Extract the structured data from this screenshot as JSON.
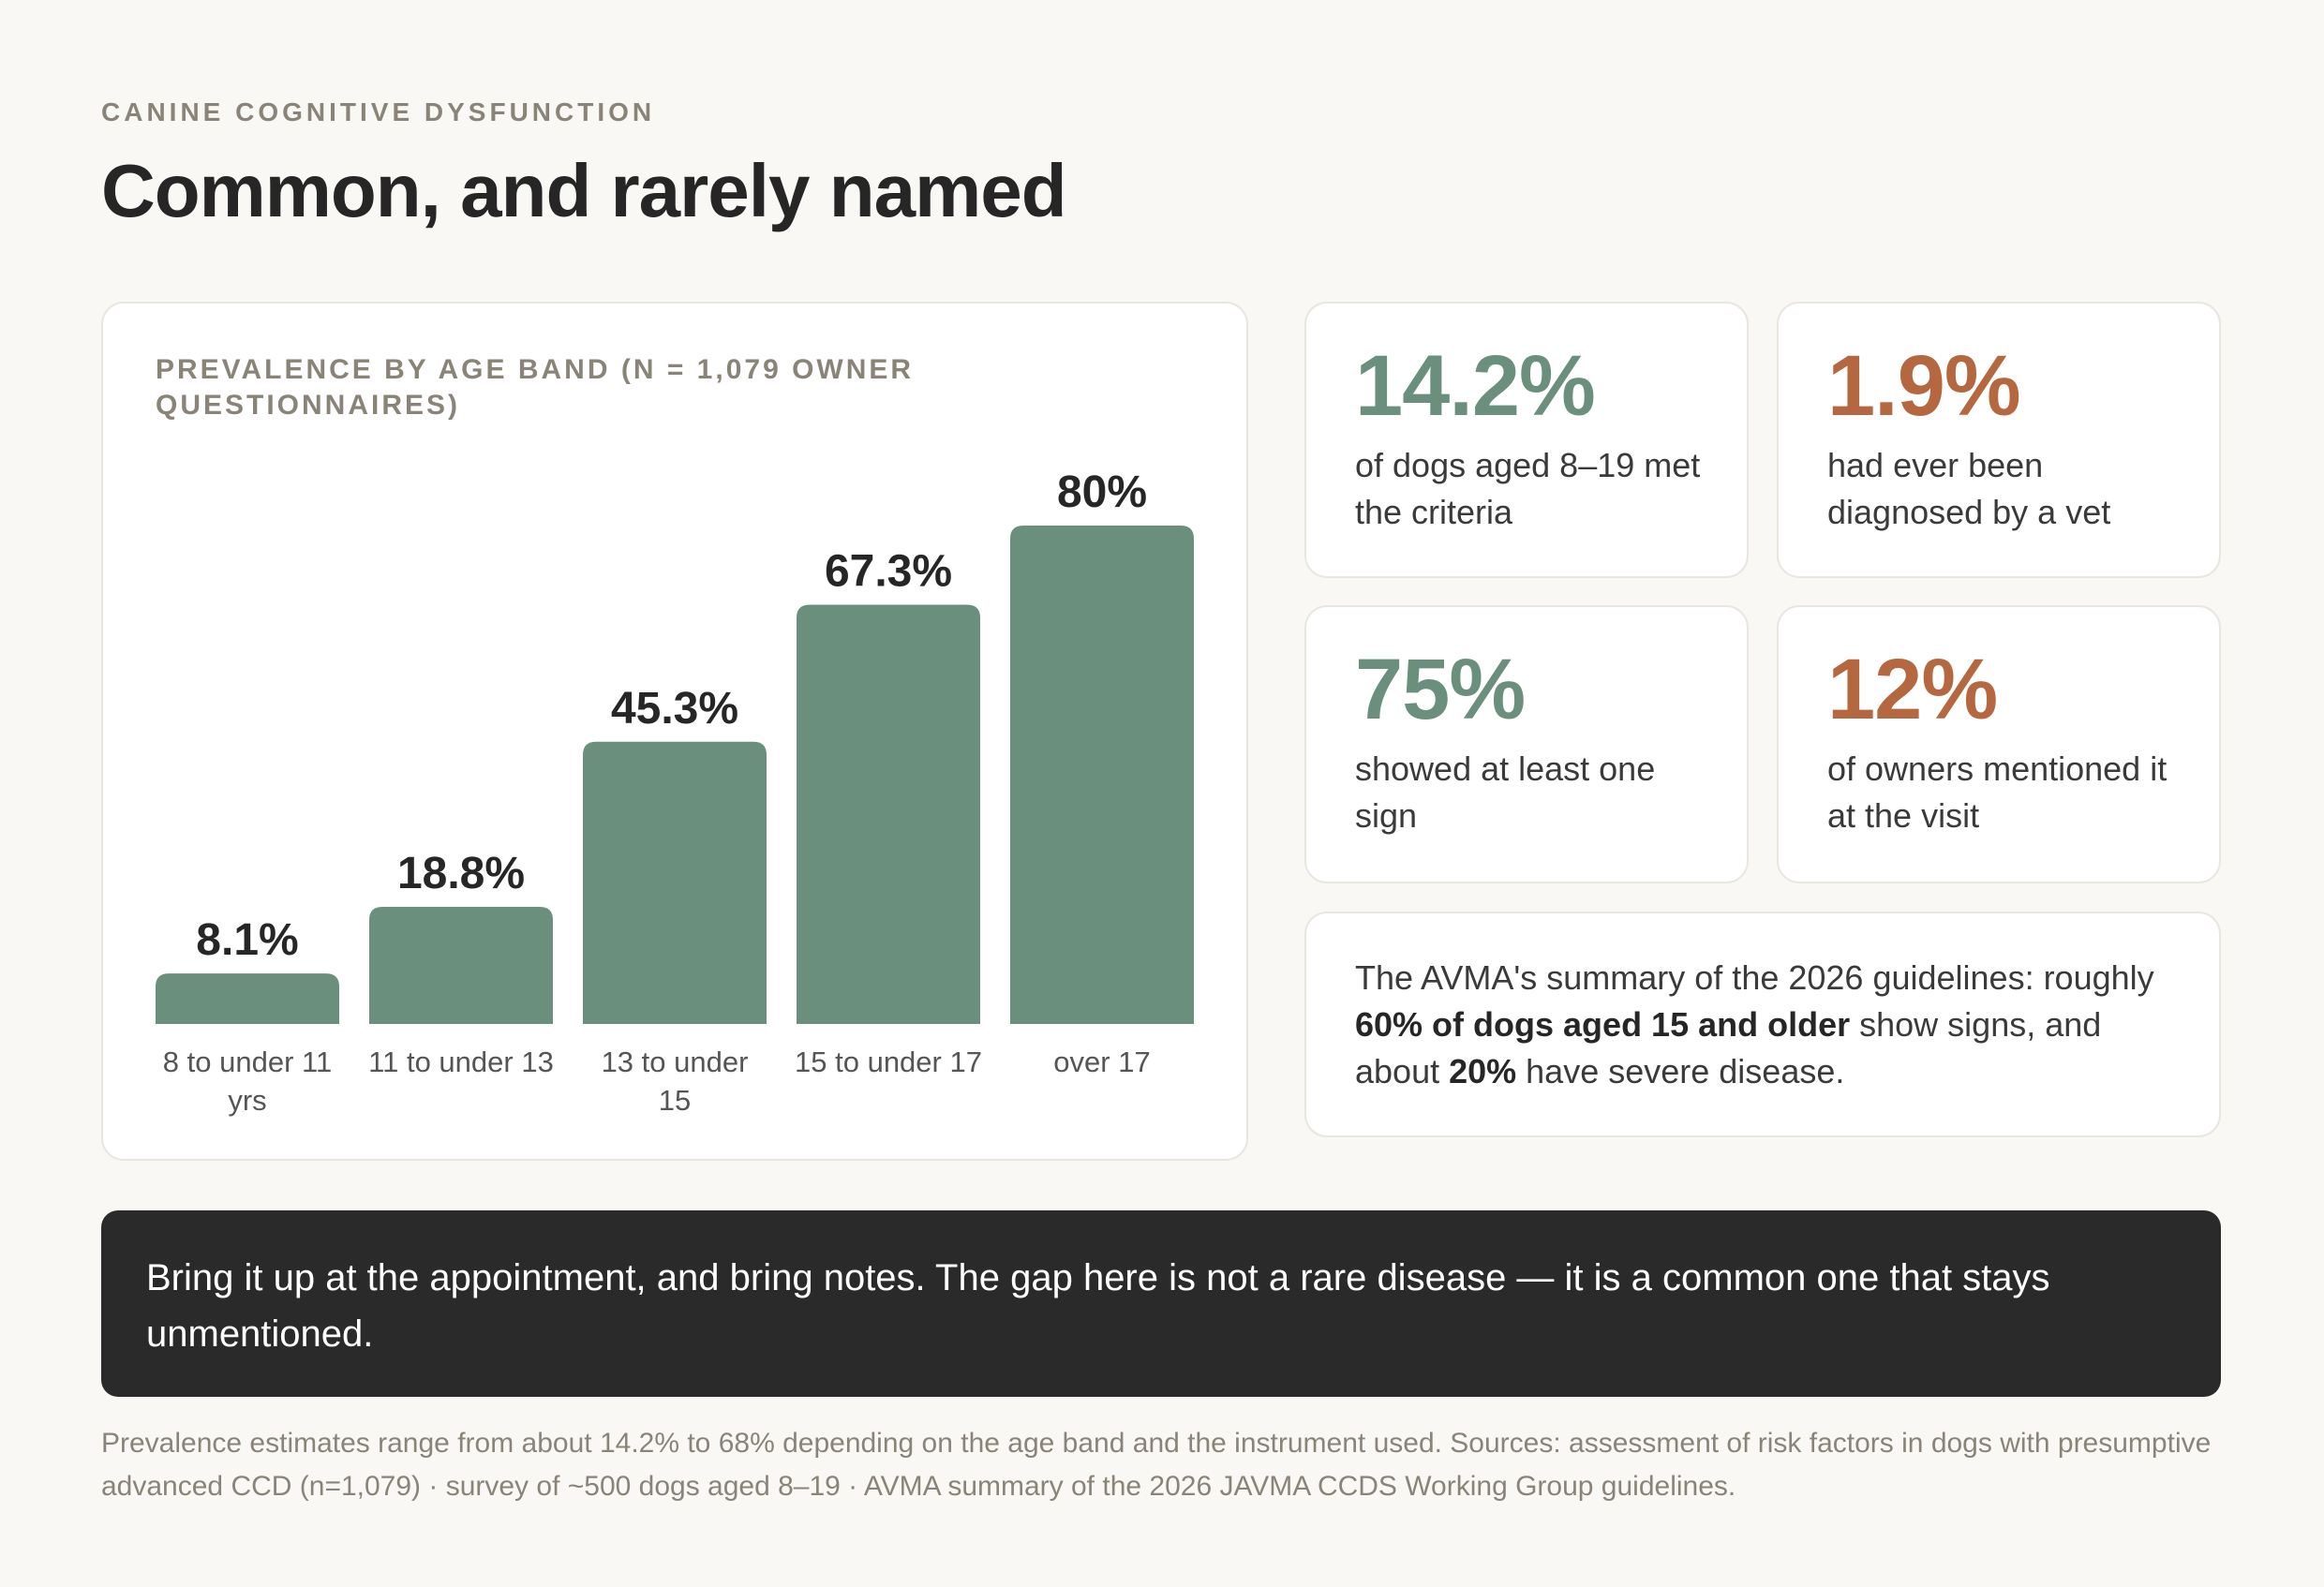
{
  "header": {
    "eyebrow": "CANINE COGNITIVE DYSFUNCTION",
    "title": "Common, and rarely named"
  },
  "chart_data": {
    "type": "bar",
    "title": "PREVALENCE BY AGE BAND (N = 1,079 OWNER QUESTIONNAIRES)",
    "categories": [
      [
        "8 to under 11",
        "yrs"
      ],
      [
        "11 to under 13"
      ],
      [
        "13 to under",
        "15"
      ],
      [
        "15 to under 17"
      ],
      [
        "over 17"
      ]
    ],
    "values": [
      8.1,
      18.8,
      45.3,
      67.3,
      80
    ],
    "value_labels": [
      "8.1%",
      "18.8%",
      "45.3%",
      "67.3%",
      "80%"
    ],
    "ylim": [
      0,
      100
    ],
    "grid": false,
    "bar_color": "#6a8f7d"
  },
  "stats": [
    {
      "value": "14.2%",
      "description": "of dogs aged 8–19 met the criteria",
      "color": "#6a8f7d"
    },
    {
      "value": "1.9%",
      "description": "had ever been diagnosed by a vet",
      "color": "#b5683f"
    },
    {
      "value": "75%",
      "description": "showed at least one sign",
      "color": "#6a8f7d"
    },
    {
      "value": "12%",
      "description": "of owners mentioned it at the visit",
      "color": "#b5683f"
    }
  ],
  "summary": {
    "part1": "The AVMA's summary of the 2026 guidelines: roughly ",
    "bold1": "60% of dogs aged 15 and older",
    "part2": " show signs, and about ",
    "bold2": "20%",
    "part3": " have severe disease."
  },
  "callout": "Bring it up at the appointment, and bring notes. The gap here is not a rare disease — it is a common one that stays unmentioned.",
  "footnote": "Prevalence estimates range from about 14.2% to 68% depending on the age band and the instrument used. Sources: assessment of risk factors in dogs with presumptive advanced CCD (n=1,079) · survey of ~500 dogs aged 8–19 · AVMA summary of the 2026 JAVMA CCDS Working Group guidelines."
}
